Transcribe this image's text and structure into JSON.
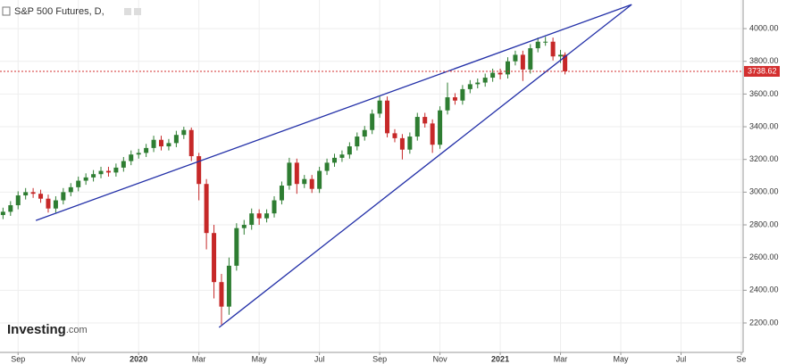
{
  "chart_data": {
    "type": "candlestick",
    "title": "S&P 500 Futures, D,",
    "watermark_parts": [
      "Investing",
      ".com"
    ],
    "x": [
      -0.5,
      -0.25,
      0,
      0.25,
      0.5,
      0.75,
      1,
      1.25,
      1.5,
      1.75,
      2,
      2.25,
      2.5,
      2.75,
      3,
      3.25,
      3.5,
      3.75,
      4,
      4.25,
      4.5,
      4.75,
      5,
      5.25,
      5.5,
      5.75,
      6,
      6.25,
      6.5,
      6.75,
      7,
      7.25,
      7.5,
      7.75,
      8,
      8.25,
      8.5,
      8.75,
      9,
      9.25,
      9.5,
      9.75,
      10,
      10.25,
      10.5,
      10.75,
      11,
      11.25,
      11.5,
      11.75,
      12,
      12.25,
      12.5,
      12.75,
      13,
      13.25,
      13.5,
      13.75,
      14,
      14.25,
      14.5,
      14.75,
      15,
      15.25,
      15.5,
      15.75,
      16,
      16.25,
      16.5,
      16.75,
      17,
      17.25,
      17.5,
      17.75,
      18,
      18.15
    ],
    "open": [
      2860,
      2880,
      2920,
      2980,
      3000,
      2990,
      2960,
      2900,
      2950,
      3000,
      3030,
      3070,
      3090,
      3110,
      3130,
      3120,
      3150,
      3190,
      3230,
      3240,
      3270,
      3320,
      3280,
      3300,
      3350,
      3380,
      3220,
      3050,
      2750,
      2450,
      2300,
      2550,
      2780,
      2800,
      2870,
      2840,
      2870,
      2950,
      3040,
      3180,
      3050,
      3080,
      3020,
      3130,
      3180,
      3210,
      3230,
      3280,
      3340,
      3380,
      3480,
      3560,
      3360,
      3330,
      3260,
      3340,
      3460,
      3420,
      3290,
      3500,
      3580,
      3560,
      3630,
      3660,
      3670,
      3700,
      3730,
      3720,
      3800,
      3840,
      3750,
      3880,
      3920,
      3920,
      3830,
      3840
    ],
    "high": [
      2905,
      2945,
      3005,
      3025,
      3025,
      3015,
      2985,
      2975,
      3025,
      3055,
      3095,
      3115,
      3135,
      3155,
      3155,
      3175,
      3215,
      3255,
      3265,
      3295,
      3345,
      3345,
      3325,
      3375,
      3400,
      3395,
      3240,
      3080,
      2800,
      2500,
      2600,
      2810,
      2830,
      2900,
      2895,
      2895,
      2975,
      3065,
      3210,
      3205,
      3105,
      3105,
      3155,
      3205,
      3235,
      3255,
      3305,
      3365,
      3405,
      3505,
      3585,
      3585,
      3385,
      3355,
      3365,
      3485,
      3485,
      3445,
      3525,
      3670,
      3605,
      3655,
      3685,
      3695,
      3725,
      3755,
      3755,
      3825,
      3865,
      3865,
      3905,
      3945,
      3950,
      3945,
      3870,
      3855
    ],
    "low": [
      2835,
      2855,
      2895,
      2955,
      2965,
      2935,
      2875,
      2875,
      2925,
      2975,
      3005,
      3045,
      3065,
      3085,
      3095,
      3095,
      3125,
      3165,
      3205,
      3215,
      3245,
      3255,
      3255,
      3275,
      3325,
      3190,
      2950,
      2650,
      2350,
      2190,
      2250,
      2520,
      2740,
      2770,
      2800,
      2815,
      2845,
      2925,
      3015,
      2990,
      3025,
      2995,
      2995,
      3105,
      3155,
      3185,
      3205,
      3255,
      3315,
      3355,
      3455,
      3335,
      3305,
      3200,
      3235,
      3315,
      3395,
      3240,
      3265,
      3475,
      3535,
      3535,
      3605,
      3635,
      3645,
      3675,
      3690,
      3695,
      3775,
      3680,
      3725,
      3855,
      3895,
      3805,
      3790,
      3720
    ],
    "close": [
      2880,
      2920,
      2980,
      3000,
      2990,
      2960,
      2900,
      2950,
      3000,
      3030,
      3070,
      3090,
      3110,
      3130,
      3120,
      3150,
      3190,
      3230,
      3240,
      3270,
      3320,
      3280,
      3300,
      3350,
      3380,
      3220,
      3050,
      2750,
      2450,
      2300,
      2550,
      2780,
      2800,
      2870,
      2840,
      2870,
      2950,
      3040,
      3180,
      3050,
      3080,
      3020,
      3130,
      3180,
      3210,
      3230,
      3280,
      3340,
      3380,
      3480,
      3560,
      3360,
      3330,
      3260,
      3340,
      3460,
      3420,
      3290,
      3500,
      3580,
      3560,
      3630,
      3660,
      3670,
      3700,
      3730,
      3720,
      3800,
      3840,
      3750,
      3880,
      3920,
      3920,
      3830,
      3840,
      3738.62
    ],
    "up_color": "#2e7d32",
    "down_color": "#c62828",
    "xlim": [
      -0.6,
      24.06
    ],
    "ylim": [
      2020,
      4175
    ],
    "xticks": [
      {
        "value": 0,
        "label": "Sep"
      },
      {
        "value": 2,
        "label": "Nov"
      },
      {
        "value": 4,
        "label": "2020"
      },
      {
        "value": 6,
        "label": "Mar"
      },
      {
        "value": 8,
        "label": "May"
      },
      {
        "value": 10,
        "label": "Jul"
      },
      {
        "value": 12,
        "label": "Sep"
      },
      {
        "value": 14,
        "label": "Nov"
      },
      {
        "value": 16,
        "label": "2021"
      },
      {
        "value": 18,
        "label": "Mar"
      },
      {
        "value": 20,
        "label": "May"
      },
      {
        "value": 22,
        "label": "Jul"
      },
      {
        "value": 24,
        "label": "Se"
      }
    ],
    "yticks": [
      {
        "value": 2200,
        "label": "2200.00"
      },
      {
        "value": 2400,
        "label": "2400.00"
      },
      {
        "value": 2600,
        "label": "2600.00"
      },
      {
        "value": 2800,
        "label": "2800.00"
      },
      {
        "value": 3000,
        "label": "3000.00"
      },
      {
        "value": 3200,
        "label": "3200.00"
      },
      {
        "value": 3400,
        "label": "3400.00"
      },
      {
        "value": 3600,
        "label": "3600.00"
      },
      {
        "value": 3800,
        "label": "3800.00"
      },
      {
        "value": 4000,
        "label": "4000.00"
      }
    ],
    "grid": true,
    "hline_value": 3738.62,
    "hline_color": "#d32f2f",
    "trendlines": [
      {
        "x": [
          0.59,
          20.36
        ],
        "y": [
          2827,
          4147
        ]
      },
      {
        "x": [
          6.67,
          20.36
        ],
        "y": [
          2173,
          4147
        ]
      }
    ],
    "trendline_color": "#2330a8"
  }
}
